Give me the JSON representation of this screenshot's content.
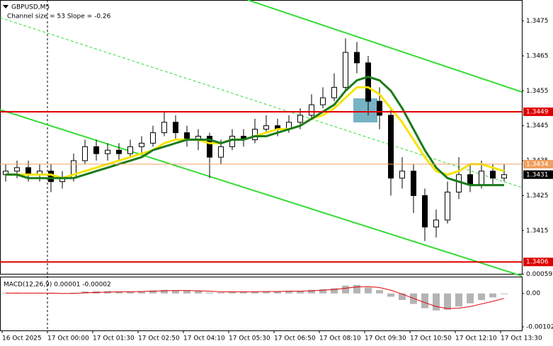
{
  "chart_data": {
    "type": "candlestick",
    "title": "GBPUSD,M5",
    "subtitle": "Channel size = 53 Slope = -0.26",
    "time_labels": [
      "16 Oct 2025",
      "17 Oct 00:00",
      "17 Oct 01:30",
      "17 Oct 02:50",
      "17 Oct 04:10",
      "17 Oct 05:30",
      "17 Oct 06:50",
      "17 Oct 08:10",
      "17 Oct 09:30",
      "17 Oct 10:50",
      "17 Oct 12:10",
      "17 Oct 13:30"
    ],
    "open": [
      1.3431,
      1.3432,
      1.3433,
      1.3431,
      1.3432,
      1.3429,
      1.343,
      1.3435,
      1.3439,
      1.3437,
      1.3438,
      1.3437,
      1.3439,
      1.344,
      1.3443,
      1.3446,
      1.3443,
      1.3441,
      1.3442,
      1.3436,
      1.3439,
      1.3442,
      1.3441,
      1.3444,
      1.3445,
      1.3444,
      1.3446,
      1.3448,
      1.3451,
      1.3453,
      1.3456,
      1.3466,
      1.3463,
      1.3452,
      1.3448,
      1.343,
      1.3432,
      1.3425,
      1.3416,
      1.3418,
      1.3426,
      1.3431,
      1.3428,
      1.3432,
      1.343
    ],
    "high": [
      1.3434,
      1.3435,
      1.3435,
      1.3434,
      1.3434,
      1.3432,
      1.3437,
      1.3441,
      1.3441,
      1.344,
      1.344,
      1.3441,
      1.3442,
      1.3445,
      1.3449,
      1.3448,
      1.3445,
      1.3444,
      1.3443,
      1.3441,
      1.3444,
      1.3444,
      1.3447,
      1.3448,
      1.3447,
      1.3448,
      1.345,
      1.3454,
      1.3456,
      1.346,
      1.347,
      1.3469,
      1.3465,
      1.3456,
      1.345,
      1.3436,
      1.3434,
      1.3427,
      1.3421,
      1.3429,
      1.3436,
      1.3434,
      1.3435,
      1.3434,
      1.3434
    ],
    "low": [
      1.3429,
      1.343,
      1.3429,
      1.3429,
      1.3426,
      1.3427,
      1.3429,
      1.3434,
      1.3435,
      1.3435,
      1.3435,
      1.3436,
      1.3437,
      1.3439,
      1.3442,
      1.3441,
      1.3439,
      1.3438,
      1.343,
      1.3434,
      1.3438,
      1.3439,
      1.344,
      1.3443,
      1.3442,
      1.3443,
      1.3444,
      1.3447,
      1.345,
      1.3452,
      1.3455,
      1.346,
      1.3448,
      1.3444,
      1.3425,
      1.3427,
      1.342,
      1.3412,
      1.3413,
      1.3417,
      1.3424,
      1.3426,
      1.3427,
      1.3428,
      1.3429
    ],
    "close": [
      1.3432,
      1.3433,
      1.3431,
      1.3432,
      1.3429,
      1.343,
      1.3435,
      1.3439,
      1.3437,
      1.3438,
      1.3437,
      1.3439,
      1.344,
      1.3443,
      1.3446,
      1.3443,
      1.3441,
      1.3442,
      1.3436,
      1.3439,
      1.3442,
      1.3441,
      1.3444,
      1.3445,
      1.3444,
      1.3446,
      1.3448,
      1.3451,
      1.3453,
      1.3456,
      1.3466,
      1.3463,
      1.3452,
      1.3448,
      1.343,
      1.3432,
      1.3425,
      1.3416,
      1.3418,
      1.3426,
      1.3431,
      1.3428,
      1.3432,
      1.343,
      1.3431
    ],
    "moving_averages": [
      {
        "color": "#f5e400",
        "values": [
          1.3431,
          1.3431,
          1.3431,
          1.3431,
          1.3431,
          1.343,
          1.3431,
          1.3432,
          1.3433,
          1.3434,
          1.3435,
          1.3436,
          1.3437,
          1.3438,
          1.344,
          1.3441,
          1.3441,
          1.3441,
          1.344,
          1.344,
          1.3441,
          1.3441,
          1.3442,
          1.3443,
          1.3444,
          1.3444,
          1.3445,
          1.3447,
          1.3448,
          1.345,
          1.3453,
          1.3456,
          1.3456,
          1.3454,
          1.345,
          1.3446,
          1.3441,
          1.3436,
          1.3432,
          1.3431,
          1.3432,
          1.3434,
          1.3434,
          1.3433,
          1.3432
        ]
      },
      {
        "color": "#1a7a1a",
        "values": [
          1.3431,
          1.3431,
          1.343,
          1.343,
          1.343,
          1.343,
          1.343,
          1.3431,
          1.3432,
          1.3433,
          1.3434,
          1.3435,
          1.3436,
          1.3438,
          1.3439,
          1.344,
          1.3441,
          1.3441,
          1.3441,
          1.344,
          1.3441,
          1.3441,
          1.3442,
          1.3442,
          1.3443,
          1.3444,
          1.3445,
          1.3447,
          1.3449,
          1.3451,
          1.3455,
          1.3458,
          1.3459,
          1.3458,
          1.3455,
          1.345,
          1.3444,
          1.3438,
          1.3433,
          1.343,
          1.3429,
          1.3428,
          1.3428,
          1.3428,
          1.3428
        ]
      }
    ],
    "ylim": [
      1.3403,
      1.3481
    ],
    "yticks": [
      1.3475,
      1.3465,
      1.3455,
      1.3445,
      1.3435,
      1.3425,
      1.3415
    ],
    "levels": [
      {
        "value": 1.3449,
        "color": "#e00000"
      },
      {
        "value": 1.3406,
        "color": "#e00000"
      },
      {
        "value": 1.3434,
        "color": "#f0a060"
      },
      {
        "value": 1.3431,
        "color": "#000000"
      }
    ],
    "macd": {
      "title": "MACD(12,26,9) 0.00001 -0.00002",
      "ylim": [
        -0.00115,
        0.00075
      ],
      "yticks": [
        0.00059,
        {
          "value": 0,
          "label": "0.00"
        },
        -0.00102
      ],
      "hist_color": "#b4b4b4",
      "signal_color": "#e00000",
      "histogram": [
        2e-05,
        2e-05,
        1e-05,
        1e-05,
        -1e-05,
        -1e-05,
        2e-05,
        6e-05,
        7e-05,
        7e-05,
        6e-05,
        6e-05,
        7e-05,
        9e-05,
        0.00011,
        0.0001,
        8e-05,
        7e-05,
        3e-05,
        3e-05,
        5e-05,
        5e-05,
        6e-05,
        7e-05,
        7e-05,
        7e-05,
        8e-05,
        0.00011,
        0.00013,
        0.00016,
        0.00024,
        0.00026,
        0.00018,
        0.0001,
        -0.0001,
        -0.0002,
        -0.00032,
        -0.00045,
        -0.00052,
        -0.0005,
        -0.0004,
        -0.0003,
        -0.0002,
        -0.00012,
        -2e-05
      ],
      "signal": [
        1e-05,
        1e-05,
        1e-05,
        1e-05,
        1e-05,
        0,
        0,
        2e-05,
        3e-05,
        4e-05,
        5e-05,
        5e-05,
        6e-05,
        7e-05,
        8e-05,
        9e-05,
        9e-05,
        8e-05,
        7e-05,
        5e-05,
        5e-05,
        5e-05,
        5e-05,
        6e-05,
        6e-05,
        7e-05,
        7e-05,
        8e-05,
        0.0001,
        0.00012,
        0.00016,
        0.0002,
        0.00021,
        0.00018,
        0.0001,
        -2e-05,
        -0.00015,
        -0.00028,
        -0.0004,
        -0.00046,
        -0.00045,
        -0.0004,
        -0.00032,
        -0.00024,
        -0.00015
      ]
    }
  }
}
